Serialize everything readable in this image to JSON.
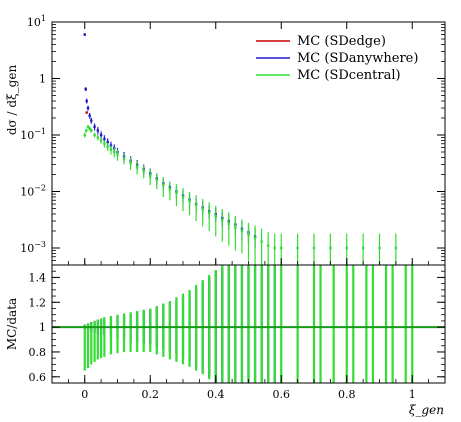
{
  "chart_data": [
    {
      "panel": "upper",
      "type": "scatter",
      "ylabel": "dσ / dξ_gen",
      "yscale": "log",
      "ylim": [
        0.0005,
        10
      ],
      "xlim": [
        -0.1,
        1.1
      ],
      "y_ticks": [
        {
          "value": 10,
          "mantissa": "10",
          "exp": "1"
        },
        {
          "value": 1,
          "mantissa": "1",
          "exp": ""
        },
        {
          "value": 0.1,
          "mantissa": "10",
          "exp": "−1"
        },
        {
          "value": 0.01,
          "mantissa": "10",
          "exp": "−2"
        },
        {
          "value": 0.001,
          "mantissa": "10",
          "exp": "−3"
        }
      ],
      "legend": {
        "position": "top-right",
        "entries": [
          {
            "label": "MC (SDedge)",
            "color": "#cc0000"
          },
          {
            "label": "MC (SDanywhere)",
            "color": "#1f1fd1"
          },
          {
            "label": "MC (SDcentral)",
            "color": "#33dd33"
          }
        ]
      },
      "series": [
        {
          "name": "MC (SDedge)",
          "color": "#cc0000",
          "x": [
            0.0,
            0.003,
            0.006
          ],
          "y": [
            6.0,
            0.65,
            0.25
          ]
        },
        {
          "name": "MC (SDanywhere)",
          "color": "#1f1fd1",
          "x": [
            0.0,
            0.003,
            0.006,
            0.01,
            0.015,
            0.02,
            0.03,
            0.04,
            0.05,
            0.06,
            0.07,
            0.08,
            0.09,
            0.1,
            0.12,
            0.14,
            0.16,
            0.18,
            0.2,
            0.22,
            0.24,
            0.26,
            0.28,
            0.3,
            0.32,
            0.34,
            0.36,
            0.38,
            0.4,
            0.42,
            0.44,
            0.46,
            0.48,
            0.5,
            0.52
          ],
          "y": [
            6.0,
            0.65,
            0.4,
            0.3,
            0.22,
            0.18,
            0.14,
            0.12,
            0.1,
            0.085,
            0.075,
            0.065,
            0.058,
            0.05,
            0.042,
            0.035,
            0.03,
            0.025,
            0.021,
            0.017,
            0.014,
            0.012,
            0.01,
            0.0085,
            0.0072,
            0.006,
            0.0052,
            0.0045,
            0.004,
            0.0034,
            0.003,
            0.0026,
            0.0022,
            0.0019,
            0.0016
          ],
          "err_lo": [
            0,
            0.05,
            0.04,
            0.03,
            0.025,
            0.022,
            0.02,
            0.018,
            0.016,
            0.014,
            0.012,
            0.011,
            0.01,
            0.009,
            0.008,
            0.007,
            0.006,
            0.005,
            0.0045,
            0.0038,
            0.0032,
            0.0028,
            0.0024,
            0.0021,
            0.0018,
            0.0016,
            0.0014,
            0.0012,
            0.0011,
            0.001,
            0.0009,
            0.0009,
            0.0008,
            0.0007,
            0.0006
          ],
          "err_hi": [
            0,
            0.05,
            0.04,
            0.03,
            0.025,
            0.022,
            0.02,
            0.018,
            0.016,
            0.014,
            0.012,
            0.011,
            0.01,
            0.009,
            0.008,
            0.007,
            0.006,
            0.005,
            0.0045,
            0.0038,
            0.0032,
            0.0028,
            0.0024,
            0.0021,
            0.0018,
            0.0016,
            0.0014,
            0.0012,
            0.0011,
            0.001,
            0.0009,
            0.0009,
            0.0008,
            0.0007,
            0.0006
          ]
        },
        {
          "name": "MC (SDcentral)",
          "color": "#33dd33",
          "x": [
            0.0,
            0.005,
            0.01,
            0.015,
            0.02,
            0.03,
            0.04,
            0.05,
            0.06,
            0.07,
            0.08,
            0.09,
            0.1,
            0.12,
            0.14,
            0.16,
            0.18,
            0.2,
            0.22,
            0.24,
            0.26,
            0.28,
            0.3,
            0.32,
            0.34,
            0.36,
            0.38,
            0.4,
            0.42,
            0.44,
            0.46,
            0.48,
            0.5,
            0.52,
            0.54,
            0.56,
            0.58,
            0.6,
            0.65,
            0.7,
            0.75,
            0.8,
            0.85,
            0.9,
            0.95
          ],
          "y": [
            0.1,
            0.12,
            0.14,
            0.13,
            0.12,
            0.1,
            0.09,
            0.08,
            0.07,
            0.062,
            0.055,
            0.05,
            0.045,
            0.038,
            0.032,
            0.027,
            0.023,
            0.019,
            0.016,
            0.013,
            0.011,
            0.0095,
            0.008,
            0.0068,
            0.0058,
            0.0049,
            0.0042,
            0.0036,
            0.0031,
            0.0027,
            0.0023,
            0.002,
            0.0017,
            0.0015,
            0.0013,
            0.0011,
            0.001,
            0.001,
            0.001,
            0.001,
            0.001,
            0.001,
            0.001,
            0.001,
            0.001
          ],
          "err_lo": [
            0.01,
            0.01,
            0.01,
            0.01,
            0.01,
            0.01,
            0.01,
            0.01,
            0.01,
            0.01,
            0.01,
            0.01,
            0.01,
            0.008,
            0.008,
            0.007,
            0.006,
            0.006,
            0.005,
            0.005,
            0.004,
            0.004,
            0.0035,
            0.003,
            0.0028,
            0.0025,
            0.0022,
            0.002,
            0.0018,
            0.0016,
            0.0014,
            0.0012,
            0.0011,
            0.001,
            0.0009,
            0.0008,
            0.0008,
            0.0008,
            0.0008,
            0.0008,
            0.0008,
            0.0008,
            0.0008,
            0.0008,
            0.0008
          ],
          "err_hi": [
            0.01,
            0.01,
            0.01,
            0.01,
            0.01,
            0.01,
            0.01,
            0.01,
            0.01,
            0.01,
            0.01,
            0.01,
            0.01,
            0.008,
            0.008,
            0.007,
            0.006,
            0.006,
            0.005,
            0.005,
            0.004,
            0.004,
            0.0035,
            0.003,
            0.0028,
            0.0025,
            0.0022,
            0.002,
            0.0018,
            0.0016,
            0.0014,
            0.0012,
            0.0011,
            0.001,
            0.0009,
            0.0008,
            0.0008,
            0.0008,
            0.0008,
            0.0008,
            0.0008,
            0.0008,
            0.0008,
            0.0008,
            0.0008
          ]
        }
      ]
    },
    {
      "panel": "lower",
      "type": "scatter",
      "ylabel": "MC/data",
      "xlabel": "ξ_gen",
      "ylim": [
        0.55,
        1.5
      ],
      "xlim": [
        -0.1,
        1.1
      ],
      "reference_line": 1.0,
      "x_ticks": [
        0,
        0.2,
        0.4,
        0.6,
        0.8,
        1
      ],
      "x_tick_labels": [
        "0",
        "0.2",
        "0.4",
        "0.6",
        "0.8",
        "1"
      ],
      "y_ticks": [
        0.6,
        0.8,
        1.0,
        1.2,
        1.4
      ],
      "y_tick_labels": [
        "0.6",
        "0.8",
        "1",
        "1.2",
        "1.4"
      ],
      "series": [
        {
          "name": "MC (SDanywhere)",
          "color": "#1f1fd1",
          "x": [
            0.0,
            0.01,
            0.02,
            0.03,
            0.04,
            0.05,
            0.06,
            0.08,
            0.1,
            0.12,
            0.14,
            0.16,
            0.18,
            0.2,
            0.22,
            0.24,
            0.26,
            0.28,
            0.3,
            0.32,
            0.34,
            0.36,
            0.38,
            0.4,
            0.42,
            0.44,
            0.46,
            0.48,
            0.5,
            0.52,
            0.54,
            0.56,
            0.58
          ],
          "y": [
            1,
            1,
            1,
            1,
            1,
            1,
            1,
            1,
            1,
            1,
            1,
            1,
            1,
            1,
            1,
            1,
            1,
            1,
            1,
            1,
            1,
            1,
            1,
            1,
            1,
            1,
            1,
            1,
            1,
            1,
            1,
            1,
            1
          ],
          "err_lo": [
            0.02,
            0.03,
            0.04,
            0.05,
            0.06,
            0.06,
            0.07,
            0.08,
            0.09,
            0.1,
            0.11,
            0.12,
            0.13,
            0.14,
            0.16,
            0.18,
            0.2,
            0.22,
            0.25,
            0.28,
            0.32,
            0.36,
            0.4,
            0.45,
            0.45,
            0.45,
            0.45,
            0.45,
            0.45,
            0.45,
            0.45,
            0.45,
            0.45
          ],
          "err_hi": [
            0.02,
            0.03,
            0.04,
            0.05,
            0.06,
            0.06,
            0.07,
            0.08,
            0.09,
            0.1,
            0.11,
            0.12,
            0.13,
            0.14,
            0.16,
            0.18,
            0.2,
            0.22,
            0.25,
            0.28,
            0.32,
            0.36,
            0.4,
            0.45,
            0.48,
            0.5,
            0.5,
            0.5,
            0.5,
            0.5,
            0.5,
            0.5,
            0.5
          ]
        },
        {
          "name": "MC (SDcentral)",
          "color": "#33dd33",
          "x": [
            0.0,
            0.01,
            0.02,
            0.03,
            0.04,
            0.05,
            0.06,
            0.08,
            0.1,
            0.12,
            0.14,
            0.16,
            0.18,
            0.2,
            0.22,
            0.24,
            0.26,
            0.28,
            0.3,
            0.32,
            0.34,
            0.36,
            0.38,
            0.4,
            0.42,
            0.44,
            0.46,
            0.48,
            0.5,
            0.52,
            0.54,
            0.56,
            0.58,
            0.6,
            0.65,
            0.7,
            0.72,
            0.76,
            0.8,
            0.82,
            0.86,
            0.88,
            0.92,
            0.94,
            0.98,
            1.0
          ],
          "y": [
            1,
            1,
            1,
            1,
            1,
            1,
            1,
            1,
            1,
            1,
            1,
            1,
            1,
            1,
            1,
            1,
            1,
            1,
            1,
            1,
            1,
            1,
            1,
            1,
            1,
            1,
            1,
            1,
            1,
            1,
            1,
            1,
            1,
            1,
            1,
            1,
            1,
            1,
            1,
            1,
            1,
            1,
            1,
            1,
            1,
            1
          ],
          "err_lo": [
            0.35,
            0.33,
            0.3,
            0.28,
            0.26,
            0.25,
            0.24,
            0.22,
            0.21,
            0.2,
            0.2,
            0.2,
            0.2,
            0.2,
            0.22,
            0.24,
            0.26,
            0.28,
            0.3,
            0.32,
            0.35,
            0.38,
            0.42,
            0.45,
            0.45,
            0.45,
            0.45,
            0.45,
            0.45,
            0.45,
            0.45,
            0.45,
            0.45,
            0.45,
            0.45,
            0.45,
            0.45,
            0.45,
            0.45,
            0.45,
            0.45,
            0.45,
            0.45,
            0.45,
            0.45,
            0.45
          ],
          "err_hi": [
            0.02,
            0.03,
            0.04,
            0.05,
            0.06,
            0.07,
            0.08,
            0.09,
            0.1,
            0.11,
            0.12,
            0.13,
            0.14,
            0.15,
            0.17,
            0.19,
            0.21,
            0.24,
            0.27,
            0.3,
            0.34,
            0.38,
            0.42,
            0.46,
            0.5,
            0.5,
            0.5,
            0.5,
            0.5,
            0.5,
            0.5,
            0.5,
            0.5,
            0.5,
            0.5,
            0.5,
            0.5,
            0.5,
            0.5,
            0.5,
            0.5,
            0.5,
            0.5,
            0.5,
            0.5,
            0.5
          ]
        }
      ]
    }
  ]
}
